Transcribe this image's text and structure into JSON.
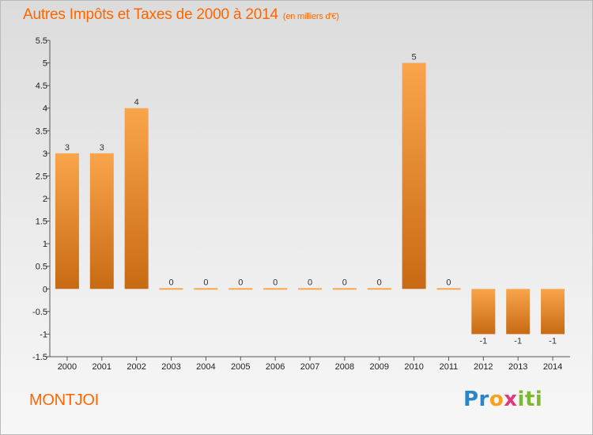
{
  "title": "Autres Impôts et Taxes de 2000 à 2014",
  "subtitle": "(en milliers d'€)",
  "commune": "MONTJOI",
  "logo_text": "Proxiti",
  "colors": {
    "bar_light": "#f9a54c",
    "bar_dark": "#c86a14",
    "accent": "#ff6600",
    "axis": "#555555"
  },
  "chart_data": {
    "type": "bar",
    "title": "Autres Impôts et Taxes de 2000 à 2014",
    "subtitle": "(en milliers d'€)",
    "categories": [
      "2000",
      "2001",
      "2002",
      "2003",
      "2004",
      "2005",
      "2006",
      "2007",
      "2008",
      "2009",
      "2010",
      "2011",
      "2012",
      "2013",
      "2014"
    ],
    "values": [
      3,
      3,
      4,
      0,
      0,
      0,
      0,
      0,
      0,
      0,
      5,
      0,
      -1,
      -1,
      -1
    ],
    "ylim": [
      -1.5,
      5.5
    ],
    "yticks": [
      -1.5,
      -1,
      -0.5,
      0,
      0.5,
      1,
      1.5,
      2,
      2.5,
      3,
      3.5,
      4,
      4.5,
      5,
      5.5
    ],
    "ytick_labels": [
      "-1.5",
      "-1",
      "-0.5",
      "0",
      "0.5",
      "1",
      "1.5",
      "2",
      "2.5",
      "3",
      "3.5",
      "4",
      "4.5",
      "5",
      "5.5"
    ],
    "grid": false,
    "legend": "none"
  }
}
